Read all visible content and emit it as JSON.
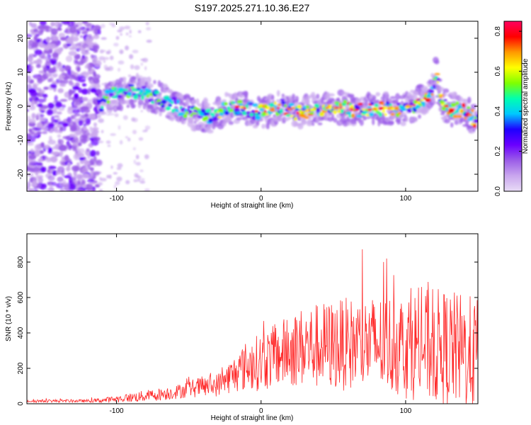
{
  "title": "S197.2025.271.10.36.E27",
  "chart_data": [
    {
      "type": "heatmap",
      "xlabel": "Height of straight line (km)",
      "ylabel": "Frequency (Hz)",
      "xlim": [
        -162,
        150
      ],
      "ylim": [
        -25,
        25
      ],
      "xticks": [
        -100,
        0,
        100
      ],
      "yticks": [
        -20,
        -10,
        0,
        10,
        20
      ],
      "colorbar": {
        "label": "Normalized spectral amplitude",
        "range": [
          0.0,
          0.85
        ],
        "ticks": [
          0.0,
          0.2,
          0.4,
          0.6,
          0.8
        ],
        "colormap": [
          "#e8dcf6",
          "#c9a6ee",
          "#9b5de8",
          "#6a00ff",
          "#1e00ff",
          "#00c8ff",
          "#00ffb0",
          "#7fff00",
          "#ffff00",
          "#ff9900",
          "#ff0000",
          "#ff0060"
        ]
      },
      "signal_track": {
        "x": [
          -112,
          -105,
          -95,
          -85,
          -75,
          -65,
          -55,
          -45,
          -35,
          -25,
          -15,
          -5,
          5,
          15,
          25,
          35,
          45,
          55,
          65,
          75,
          85,
          95,
          105,
          112,
          118,
          121,
          125,
          132,
          140,
          146,
          150
        ],
        "y": [
          0,
          3,
          4,
          4.5,
          3,
          1.5,
          -1,
          -2.5,
          -3,
          -1,
          0,
          -1.5,
          -1.5,
          0,
          -2,
          -1,
          -0.5,
          -0.5,
          -1,
          -1,
          -0.5,
          -1,
          0,
          2,
          4,
          10,
          1,
          -1,
          -1,
          -3,
          -5
        ]
      }
    },
    {
      "type": "line",
      "xlabel": "Height of straight line (km)",
      "ylabel": "SNR (10 * v/v)",
      "xlim": [
        -162,
        150
      ],
      "ylim": [
        0,
        960
      ],
      "xticks": [
        -100,
        0,
        100
      ],
      "yticks": [
        0,
        200,
        400,
        600,
        800
      ],
      "color": "#ff2a2a",
      "envelope": {
        "x": [
          -162,
          -120,
          -110,
          -100,
          -80,
          -60,
          -50,
          -40,
          -30,
          -20,
          -10,
          0,
          10,
          20,
          30,
          40,
          60,
          80,
          100,
          110,
          120,
          130,
          140,
          150
        ],
        "base": [
          15,
          15,
          18,
          25,
          40,
          60,
          80,
          90,
          100,
          150,
          200,
          220,
          250,
          280,
          300,
          300,
          310,
          310,
          300,
          300,
          290,
          280,
          260,
          250
        ],
        "amp": [
          15,
          15,
          25,
          35,
          60,
          70,
          90,
          110,
          120,
          180,
          260,
          300,
          330,
          380,
          420,
          450,
          480,
          500,
          550,
          580,
          600,
          600,
          600,
          580
        ]
      }
    }
  ]
}
